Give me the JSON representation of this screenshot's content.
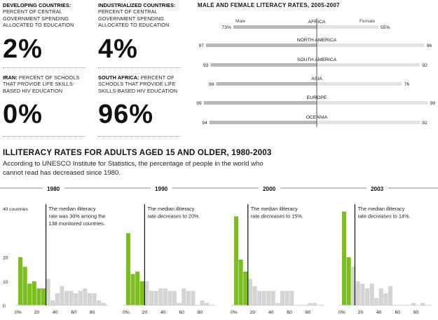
{
  "stats": [
    {
      "head": "DEVELOPING COUNTRIES:",
      "text": "PERCENT OF CENTRAL GOVERNMENT SPENDING ALLOCATED TO EDUCATION",
      "value": "2%"
    },
    {
      "head": "INDUSTRIALIZED COUNTRIES:",
      "text": "PERCENT OF CENTRAL GOVERNMENT SPENDING ALLOCATED TO EDUCATION",
      "value": "4%"
    },
    {
      "head": "IRAN:",
      "text": "PERCENT OF SCHOOLS THAT PROVIDE LIFE SKILLS-BASED HIV EDUCATION",
      "value": "0%"
    },
    {
      "head": "SOUTH AFRICA:",
      "text": "PERCENT OF SCHOOLS THAT PROVIDE LIFE SKILLS-BASED HIV EDUCATION",
      "value": "96%"
    }
  ],
  "literacy": {
    "title": "MALE AND FEMALE LITERACY RATES, 2005-2007",
    "male_label": "Male",
    "female_label": "Female",
    "regions": [
      {
        "name": "AFRICA",
        "male": 73,
        "female": 55,
        "male_text": "73%",
        "female_text": "55%"
      },
      {
        "name": "NORTH AMERICA",
        "male": 97,
        "female": 96,
        "male_text": "97",
        "female_text": "96"
      },
      {
        "name": "SOUTH AMERICA",
        "male": 93,
        "female": 92,
        "male_text": "93",
        "female_text": "92"
      },
      {
        "name": "ASIA",
        "male": 88,
        "female": 76,
        "male_text": "88",
        "female_text": "76"
      },
      {
        "name": "EUROPE",
        "male": 99,
        "female": 99,
        "male_text": "99",
        "female_text": "99"
      },
      {
        "name": "OCEANIA",
        "male": 94,
        "female": 92,
        "male_text": "94",
        "female_text": "92"
      }
    ],
    "colors": {
      "male": "#b7b7b7",
      "female": "#e3e3e3",
      "divider": "#555555"
    }
  },
  "illiteracy": {
    "title": "ILLITERACY RATES FOR ADULTS AGED 15 AND OLDER, 1980-2003",
    "intro": "According to UNESCO Institute for Statistics, the percentage of people in the world who cannot read has decreased since 1980."
  },
  "chart_data": [
    {
      "type": "bar",
      "year": "1980",
      "ylabel": "40 countries",
      "x_ticks": [
        "0%",
        "20",
        "40",
        "60",
        "80"
      ],
      "y_ticks": [
        "0",
        "10",
        "20"
      ],
      "ylim": [
        0,
        40
      ],
      "xlim": [
        -3,
        97
      ],
      "bin_width": 5,
      "bin_starts": [
        0,
        5,
        10,
        15,
        20,
        25,
        30,
        35,
        40,
        45,
        50,
        55,
        60,
        65,
        70,
        75,
        80,
        85,
        90
      ],
      "values": [
        20,
        16,
        9,
        10,
        7,
        7,
        11,
        2,
        5,
        8,
        6,
        6,
        5,
        6,
        7,
        5,
        5,
        2,
        1
      ],
      "median": 30,
      "median_text_parts": [
        "The median illiteracy rate was 30% among the 138 monitored countries."
      ]
    },
    {
      "type": "bar",
      "year": "1990",
      "x_ticks": [
        "0%",
        "20",
        "40",
        "60",
        "80"
      ],
      "y_ticks": [
        "0",
        "10",
        "20"
      ],
      "ylim": [
        0,
        40
      ],
      "xlim": [
        -3,
        97
      ],
      "bin_width": 5,
      "bin_starts": [
        0,
        5,
        10,
        15,
        20,
        25,
        30,
        35,
        40,
        45,
        50,
        55,
        60,
        65,
        70,
        75,
        80,
        85
      ],
      "values": [
        30,
        13,
        14,
        10,
        10,
        6,
        6,
        7,
        7,
        6,
        6,
        1,
        7,
        6,
        6,
        0,
        2,
        1
      ],
      "median": 20,
      "median_text_parts": [
        "The median illiteracy rate ",
        "decreases",
        " to 20%."
      ]
    },
    {
      "type": "bar",
      "year": "2000",
      "x_ticks": [
        "0%",
        "20",
        "40",
        "60",
        "80"
      ],
      "y_ticks": [
        "0",
        "10",
        "20"
      ],
      "ylim": [
        0,
        40
      ],
      "xlim": [
        -3,
        97
      ],
      "bin_width": 5,
      "bin_starts": [
        0,
        5,
        10,
        15,
        20,
        25,
        30,
        35,
        40,
        45,
        50,
        55,
        60,
        65,
        70,
        75,
        80,
        85
      ],
      "values": [
        37,
        19,
        14,
        11,
        8,
        6,
        6,
        6,
        6,
        1,
        6,
        6,
        6,
        0,
        0,
        0,
        1,
        1
      ],
      "median": 15,
      "median_text_parts": [
        "The median illiteracy rate ",
        "decreases",
        " to 15%."
      ]
    },
    {
      "type": "bar",
      "year": "2003",
      "x_ticks": [
        "0%",
        "20",
        "40",
        "60",
        "80"
      ],
      "y_ticks": [
        "0",
        "10",
        "20"
      ],
      "ylim": [
        0,
        40
      ],
      "xlim": [
        -3,
        97
      ],
      "bin_width": 5,
      "bin_starts": [
        0,
        5,
        10,
        15,
        20,
        25,
        30,
        35,
        40,
        45,
        50,
        55,
        60,
        65,
        70,
        75,
        80,
        85
      ],
      "values": [
        39,
        20,
        16,
        10,
        9,
        7,
        9,
        3,
        7,
        5,
        8,
        0,
        0,
        0,
        0,
        1,
        0,
        1
      ],
      "median": 14,
      "median_text_parts": [
        "The median illiteracy rate ",
        "decreases",
        " to 14%."
      ]
    }
  ],
  "chart_colors": {
    "highlight": "#7bbf1f",
    "bar": "#d4d4d4",
    "median_line": "#111111",
    "axis": "#555555"
  }
}
